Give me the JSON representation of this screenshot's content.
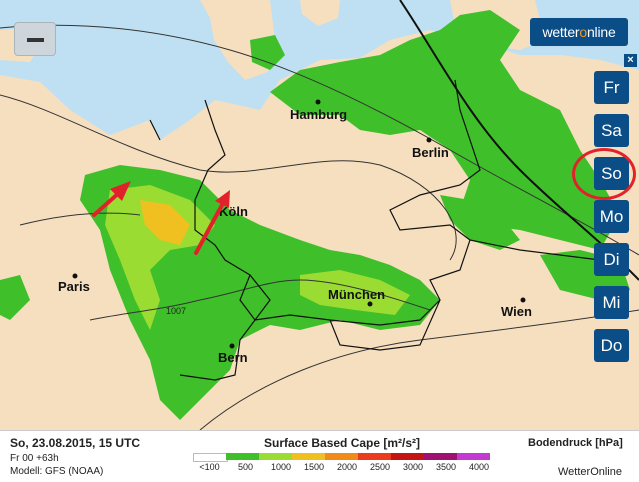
{
  "map": {
    "cities": [
      {
        "id": "hamburg",
        "name": "Hamburg"
      },
      {
        "id": "berlin",
        "name": "Berlin"
      },
      {
        "id": "koeln",
        "name": "Köln"
      },
      {
        "id": "paris",
        "name": "Paris"
      },
      {
        "id": "muenchen",
        "name": "München"
      },
      {
        "id": "wien",
        "name": "Wien"
      },
      {
        "id": "bern",
        "name": "Bern"
      }
    ],
    "isobar_label": "1007",
    "zoom_out_icon": "minus-icon"
  },
  "brand": {
    "prefix": "wetter",
    "accent": "o",
    "suffix": "nline"
  },
  "close_icon": "close-icon",
  "days": [
    "Fr",
    "Sa",
    "So",
    "Mo",
    "Di",
    "Mi",
    "Do"
  ],
  "selected_day": "So",
  "legend": {
    "date": "So, 23.08.2015, 15 UTC",
    "run": "Fr 00 +63h",
    "model": "Modell: GFS (NOAA)",
    "scale_title": "Surface Based Cape [m²/s²]",
    "scale": [
      {
        "label": "<100",
        "color": "#ffffff"
      },
      {
        "label": "500",
        "color": "#3fbf2a"
      },
      {
        "label": "1000",
        "color": "#9bdc32"
      },
      {
        "label": "1500",
        "color": "#f0c020"
      },
      {
        "label": "2000",
        "color": "#f08a1a"
      },
      {
        "label": "2500",
        "color": "#ec3a1c"
      },
      {
        "label": "3000",
        "color": "#c41414"
      },
      {
        "label": "3500",
        "color": "#a01070"
      },
      {
        "label": "4000",
        "color": "#c23ad0"
      }
    ],
    "pressure_title": "Bodendruck [hPa]",
    "footer_brand": "WetterOnline"
  },
  "colors": {
    "land": "#f6dfbf",
    "sea": "#bfe0f2",
    "cape_light": "#9bdc32",
    "cape_green": "#3fbf2a",
    "cape_yellow": "#f0c020",
    "arrow": "#e2222a",
    "button": "#0b4d86"
  }
}
